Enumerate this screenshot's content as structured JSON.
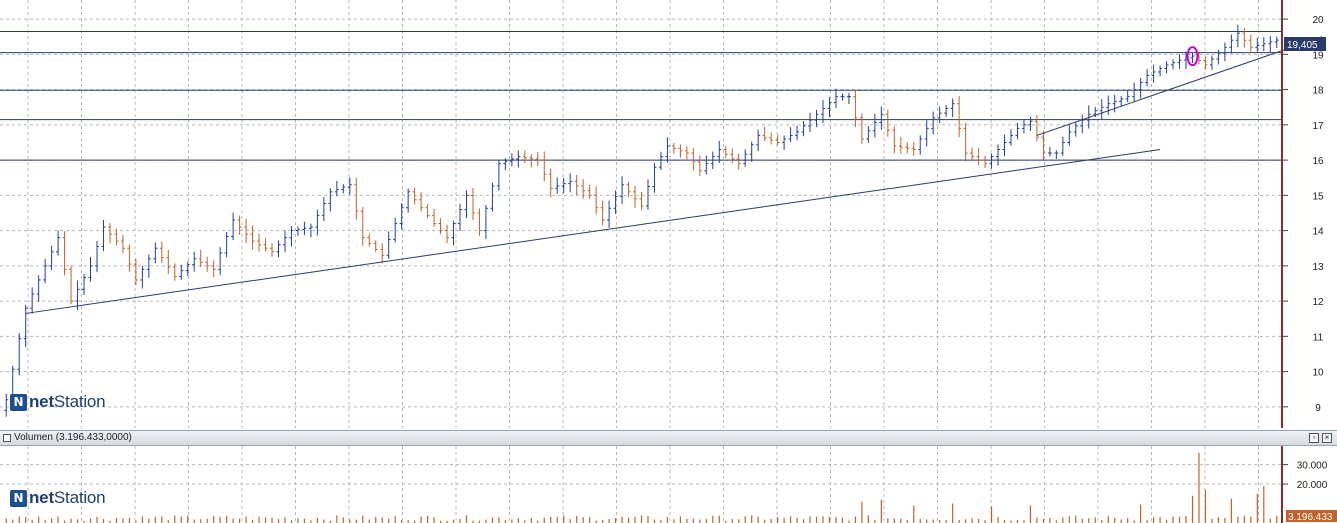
{
  "app": {
    "logo_prefix": "net",
    "logo_suffix": "Station"
  },
  "colors": {
    "up": "#1f3f9e",
    "down": "#c0622a",
    "grid": "#b8b8b8",
    "axis": "#8b2b2b",
    "hline": "#2a3a6a",
    "badge": "#2a3a6a",
    "highlight": "#cc00cc"
  },
  "price_tag": "19,405",
  "volume_panel": {
    "header_label": "Volumen (3.196.433,0000)",
    "last_value_tag": "3.196.433",
    "btn_restore": "▫",
    "btn_close": "×"
  },
  "chart_data": [
    {
      "type": "ohlc",
      "title": "",
      "xlabel": "",
      "ylabel": "",
      "ylim": [
        8.4,
        20.4
      ],
      "yticks": [
        9,
        10,
        11,
        12,
        13,
        14,
        15,
        16,
        17,
        18,
        19,
        20
      ],
      "grid": true,
      "last_price": 19.405,
      "horizontal_levels": [
        16.0,
        17.15,
        17.98,
        19.05,
        19.65
      ],
      "trendlines": [
        {
          "from_bar": 3,
          "from_price": 11.65,
          "to_bar": 178,
          "to_price": 16.3
        },
        {
          "from_bar": 159,
          "from_price": 16.7,
          "to_bar": 203,
          "to_price": 19.5
        }
      ],
      "highlight": {
        "bar": 183,
        "price": 18.95
      },
      "anchors": [
        [
          0,
          9.2
        ],
        [
          3,
          11.8
        ],
        [
          5,
          12.6
        ],
        [
          8,
          13.8
        ],
        [
          10,
          12.0
        ],
        [
          13,
          13.0
        ],
        [
          15,
          14.1
        ],
        [
          18,
          13.5
        ],
        [
          20,
          12.6
        ],
        [
          23,
          13.5
        ],
        [
          26,
          12.7
        ],
        [
          29,
          13.2
        ],
        [
          32,
          12.9
        ],
        [
          35,
          14.3
        ],
        [
          38,
          13.7
        ],
        [
          41,
          13.4
        ],
        [
          44,
          14.0
        ],
        [
          47,
          14.1
        ],
        [
          50,
          15.1
        ],
        [
          53,
          15.3
        ],
        [
          55,
          13.8
        ],
        [
          58,
          13.3
        ],
        [
          62,
          15.1
        ],
        [
          66,
          14.2
        ],
        [
          68,
          13.8
        ],
        [
          71,
          15.0
        ],
        [
          73,
          14.0
        ],
        [
          76,
          15.9
        ],
        [
          79,
          16.1
        ],
        [
          82,
          16.0
        ],
        [
          84,
          15.2
        ],
        [
          87,
          15.4
        ],
        [
          90,
          15.0
        ],
        [
          92,
          14.3
        ],
        [
          95,
          15.3
        ],
        [
          98,
          14.7
        ],
        [
          100,
          15.8
        ],
        [
          102,
          16.4
        ],
        [
          105,
          16.2
        ],
        [
          107,
          15.7
        ],
        [
          110,
          16.3
        ],
        [
          113,
          15.9
        ],
        [
          116,
          16.7
        ],
        [
          119,
          16.5
        ],
        [
          122,
          16.8
        ],
        [
          125,
          17.3
        ],
        [
          128,
          17.8
        ],
        [
          130,
          17.8
        ],
        [
          132,
          16.6
        ],
        [
          135,
          17.3
        ],
        [
          137,
          16.4
        ],
        [
          140,
          16.3
        ],
        [
          143,
          17.2
        ],
        [
          146,
          17.6
        ],
        [
          148,
          16.2
        ],
        [
          151,
          15.9
        ],
        [
          153,
          16.3
        ],
        [
          156,
          16.9
        ],
        [
          158,
          17.1
        ],
        [
          160,
          16.2
        ],
        [
          162,
          16.2
        ],
        [
          164,
          16.8
        ],
        [
          167,
          17.3
        ],
        [
          170,
          17.6
        ],
        [
          173,
          17.8
        ],
        [
          176,
          18.4
        ],
        [
          179,
          18.7
        ],
        [
          182,
          18.9
        ],
        [
          183,
          18.95
        ],
        [
          185,
          18.7
        ],
        [
          188,
          19.2
        ],
        [
          190,
          19.6
        ],
        [
          192,
          19.2
        ],
        [
          194,
          19.3
        ],
        [
          196,
          19.405
        ]
      ],
      "volume": {
        "yticks": [
          20000,
          30000
        ],
        "ylim": [
          0,
          38000
        ],
        "base_level": 2200,
        "spikes": [
          [
            132,
            11000
          ],
          [
            135,
            12000
          ],
          [
            140,
            9000
          ],
          [
            146,
            10000
          ],
          [
            152,
            8500
          ],
          [
            158,
            9000
          ],
          [
            175,
            9500
          ],
          [
            183,
            14000
          ],
          [
            184,
            36000
          ],
          [
            185,
            17000
          ],
          [
            189,
            12500
          ],
          [
            193,
            15000
          ],
          [
            194,
            19000
          ]
        ]
      }
    }
  ]
}
